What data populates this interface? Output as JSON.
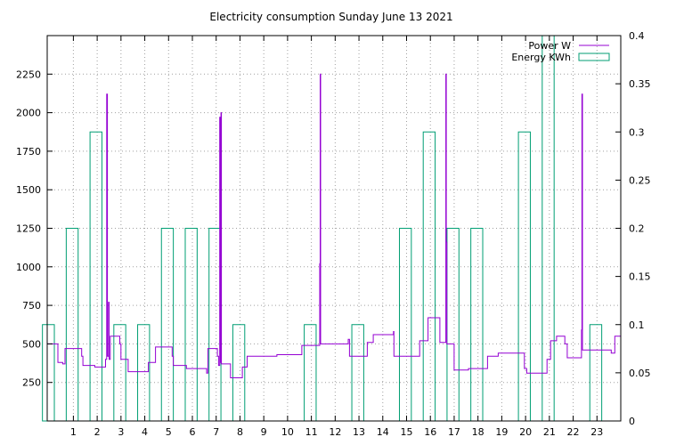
{
  "chart_data": {
    "type": "line",
    "title": "Electricity consumption Sunday June 13 2021",
    "x": {
      "min": -0.1,
      "max": 24,
      "ticks": [
        "1",
        "2",
        "3",
        "4",
        "5",
        "6",
        "7",
        "8",
        "9",
        "10",
        "11",
        "12",
        "13",
        "14",
        "15",
        "16",
        "17",
        "18",
        "19",
        "20",
        "21",
        "22",
        "23"
      ]
    },
    "y_left": {
      "min": 0,
      "max": 2500,
      "ticks": [
        "250",
        "500",
        "750",
        "1000",
        "1250",
        "1500",
        "1750",
        "2000",
        "2250"
      ]
    },
    "y_right": {
      "min": 0,
      "max": 0.4,
      "ticks": [
        "0",
        "0.05",
        "0.1",
        "0.15",
        "0.2",
        "0.25",
        "0.3",
        "0.35",
        "0.4"
      ]
    },
    "grid": true,
    "legend_position": "top-right",
    "series": [
      {
        "name": "Energy KWh",
        "axis": "right",
        "style": "boxes",
        "color": "#009e73",
        "bins": [
          {
            "x": 0.0,
            "value": 0.1
          },
          {
            "x": 1.0,
            "value": 0.2
          },
          {
            "x": 2.0,
            "value": 0.3
          },
          {
            "x": 3.0,
            "value": 0.1
          },
          {
            "x": 4.0,
            "value": 0.1
          },
          {
            "x": 5.0,
            "value": 0.2
          },
          {
            "x": 6.0,
            "value": 0.2
          },
          {
            "x": 7.0,
            "value": 0.2
          },
          {
            "x": 8.0,
            "value": 0.1
          },
          {
            "x": 11.0,
            "value": 0.1
          },
          {
            "x": 13.0,
            "value": 0.1
          },
          {
            "x": 15.0,
            "value": 0.2
          },
          {
            "x": 16.0,
            "value": 0.3
          },
          {
            "x": 17.0,
            "value": 0.2
          },
          {
            "x": 18.0,
            "value": 0.2
          },
          {
            "x": 20.0,
            "value": 0.3
          },
          {
            "x": 21.0,
            "value": 0.4
          },
          {
            "x": 23.0,
            "value": 0.1
          }
        ]
      },
      {
        "name": "Power W",
        "axis": "left",
        "style": "steps",
        "color": "#9400d3",
        "points": [
          [
            -0.1,
            500
          ],
          [
            0.35,
            500
          ],
          [
            0.35,
            380
          ],
          [
            0.55,
            380
          ],
          [
            0.55,
            370
          ],
          [
            0.65,
            370
          ],
          [
            0.65,
            470
          ],
          [
            1.35,
            470
          ],
          [
            1.35,
            420
          ],
          [
            1.4,
            420
          ],
          [
            1.4,
            360
          ],
          [
            1.9,
            360
          ],
          [
            1.9,
            350
          ],
          [
            2.35,
            350
          ],
          [
            2.35,
            400
          ],
          [
            2.4,
            400
          ],
          [
            2.4,
            2120
          ],
          [
            2.43,
            2120
          ],
          [
            2.43,
            420
          ],
          [
            2.48,
            420
          ],
          [
            2.48,
            770
          ],
          [
            2.5,
            770
          ],
          [
            2.5,
            400
          ],
          [
            2.55,
            400
          ],
          [
            2.55,
            550
          ],
          [
            2.95,
            550
          ],
          [
            2.95,
            500
          ],
          [
            3.0,
            500
          ],
          [
            3.0,
            400
          ],
          [
            3.3,
            400
          ],
          [
            3.3,
            320
          ],
          [
            4.15,
            320
          ],
          [
            4.15,
            380
          ],
          [
            4.45,
            380
          ],
          [
            4.45,
            480
          ],
          [
            5.15,
            480
          ],
          [
            5.15,
            420
          ],
          [
            5.2,
            420
          ],
          [
            5.2,
            360
          ],
          [
            5.75,
            360
          ],
          [
            5.75,
            340
          ],
          [
            6.6,
            340
          ],
          [
            6.6,
            310
          ],
          [
            6.65,
            310
          ],
          [
            6.65,
            470
          ],
          [
            7.05,
            470
          ],
          [
            7.05,
            420
          ],
          [
            7.1,
            420
          ],
          [
            7.1,
            360
          ],
          [
            7.15,
            360
          ],
          [
            7.15,
            1970
          ],
          [
            7.17,
            1970
          ],
          [
            7.17,
            380
          ],
          [
            7.2,
            380
          ],
          [
            7.2,
            2000
          ],
          [
            7.22,
            2000
          ],
          [
            7.22,
            370
          ],
          [
            7.6,
            370
          ],
          [
            7.6,
            280
          ],
          [
            8.1,
            280
          ],
          [
            8.1,
            350
          ],
          [
            8.3,
            350
          ],
          [
            8.3,
            420
          ],
          [
            9.55,
            420
          ],
          [
            9.55,
            430
          ],
          [
            10.6,
            430
          ],
          [
            10.6,
            490
          ],
          [
            11.35,
            490
          ],
          [
            11.35,
            1020
          ],
          [
            11.37,
            1020
          ],
          [
            11.37,
            2250
          ],
          [
            11.39,
            2250
          ],
          [
            11.39,
            500
          ],
          [
            12.55,
            500
          ],
          [
            12.55,
            530
          ],
          [
            12.6,
            530
          ],
          [
            12.6,
            420
          ],
          [
            13.35,
            420
          ],
          [
            13.35,
            510
          ],
          [
            13.6,
            510
          ],
          [
            13.6,
            560
          ],
          [
            14.45,
            560
          ],
          [
            14.45,
            580
          ],
          [
            14.47,
            580
          ],
          [
            14.47,
            420
          ],
          [
            15.55,
            420
          ],
          [
            15.55,
            520
          ],
          [
            15.9,
            520
          ],
          [
            15.9,
            670
          ],
          [
            16.4,
            670
          ],
          [
            16.4,
            510
          ],
          [
            16.65,
            510
          ],
          [
            16.65,
            2250
          ],
          [
            16.67,
            2250
          ],
          [
            16.67,
            1160
          ],
          [
            16.69,
            1160
          ],
          [
            16.69,
            500
          ],
          [
            17.0,
            500
          ],
          [
            17.0,
            330
          ],
          [
            17.6,
            330
          ],
          [
            17.6,
            340
          ],
          [
            18.4,
            340
          ],
          [
            18.4,
            420
          ],
          [
            18.85,
            420
          ],
          [
            18.85,
            440
          ],
          [
            19.95,
            440
          ],
          [
            19.95,
            340
          ],
          [
            20.05,
            340
          ],
          [
            20.05,
            310
          ],
          [
            20.9,
            310
          ],
          [
            20.9,
            400
          ],
          [
            21.05,
            400
          ],
          [
            21.05,
            520
          ],
          [
            21.3,
            520
          ],
          [
            21.3,
            550
          ],
          [
            21.65,
            550
          ],
          [
            21.65,
            500
          ],
          [
            21.75,
            500
          ],
          [
            21.75,
            410
          ],
          [
            22.35,
            410
          ],
          [
            22.35,
            590
          ],
          [
            22.37,
            590
          ],
          [
            22.37,
            2120
          ],
          [
            22.39,
            2120
          ],
          [
            22.39,
            460
          ],
          [
            23.6,
            460
          ],
          [
            23.6,
            440
          ],
          [
            23.75,
            440
          ],
          [
            23.75,
            550
          ],
          [
            24.0,
            550
          ]
        ]
      }
    ]
  }
}
